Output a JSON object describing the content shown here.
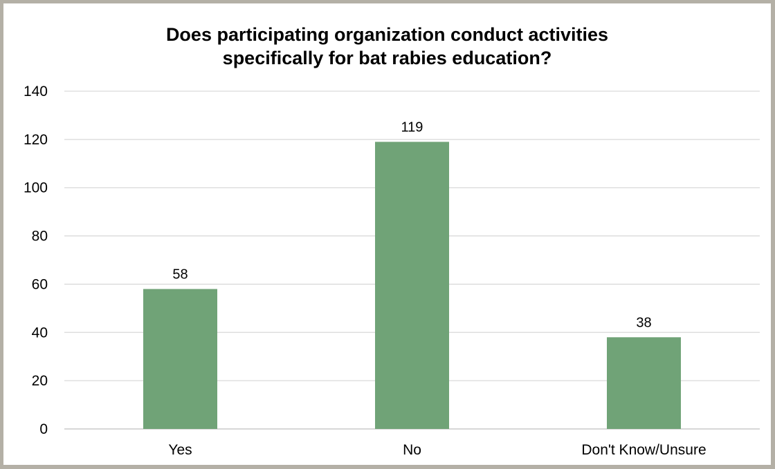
{
  "chart_data": {
    "type": "bar",
    "title_lines": [
      "Does participating organization conduct activities",
      "specifically for bat rabies education?"
    ],
    "categories": [
      "Yes",
      "No",
      "Don't Know/Unsure"
    ],
    "values": [
      58,
      119,
      38
    ],
    "data_labels": [
      "58",
      "119",
      "38"
    ],
    "ylim": [
      0,
      140
    ],
    "y_ticks": [
      0,
      20,
      40,
      60,
      80,
      100,
      120,
      140
    ],
    "grid": true,
    "bar_color": "#70a377",
    "grid_color": "#d9d9d9",
    "axis_color": "#bfbfbf"
  }
}
